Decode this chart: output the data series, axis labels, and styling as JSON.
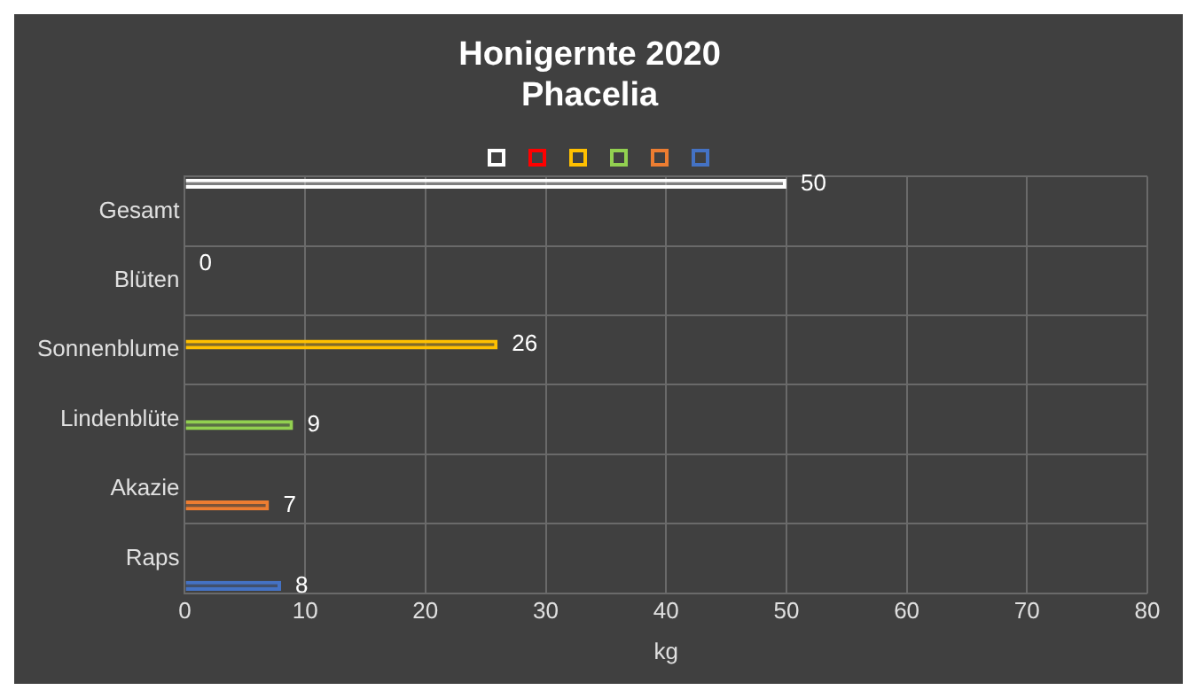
{
  "chart_data": {
    "type": "bar",
    "orientation": "horizontal",
    "title": "Honigernte 2020",
    "subtitle": "Phacelia",
    "xlabel": "kg",
    "categories": [
      "Gesamt",
      "Blüten",
      "Sonnenblume",
      "Lindenblüte",
      "Akazie",
      "Raps"
    ],
    "series": [
      {
        "color": "#ffffff",
        "values": [
          50,
          null,
          null,
          null,
          null,
          null
        ]
      },
      {
        "color": "#ff0000",
        "values": [
          null,
          0,
          null,
          null,
          null,
          null
        ]
      },
      {
        "color": "#ffc000",
        "values": [
          null,
          null,
          26,
          null,
          null,
          null
        ]
      },
      {
        "color": "#92d050",
        "values": [
          null,
          null,
          null,
          9,
          null,
          null
        ]
      },
      {
        "color": "#ed7d31",
        "values": [
          null,
          null,
          null,
          null,
          7,
          null
        ]
      },
      {
        "color": "#4472c4",
        "values": [
          null,
          null,
          null,
          null,
          null,
          8
        ]
      }
    ],
    "xlim": [
      0,
      80
    ],
    "xticks": [
      0,
      10,
      20,
      30,
      40,
      50,
      60,
      70,
      80
    ],
    "grid": true,
    "data_labels": true
  }
}
